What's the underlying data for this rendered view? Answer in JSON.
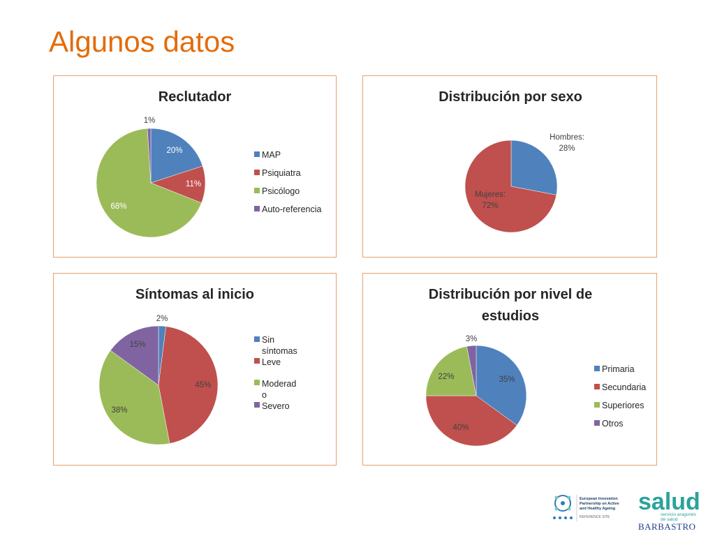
{
  "slide": {
    "title": "Algunos datos"
  },
  "colors": {
    "blue": "#4F81BD",
    "red": "#C0504D",
    "green": "#9BBB59",
    "purple": "#8064A2",
    "title_orange": "#E36C09",
    "border": "#E8A06A"
  },
  "chart_data": [
    {
      "type": "pie",
      "title": "Reclutador",
      "labels": [
        "MAP",
        "Psiquiatra",
        "Psicólogo",
        "Auto-referencia"
      ],
      "values": [
        20,
        11,
        68,
        1
      ],
      "value_labels": [
        "20%",
        "11%",
        "68%",
        "1%"
      ],
      "legend": "right"
    },
    {
      "type": "pie",
      "title": "Distribución por sexo",
      "labels": [
        "Hombres",
        "Mujeres"
      ],
      "values": [
        28,
        72
      ],
      "value_labels": [
        "Hombres: 28%",
        "Mujeres: 72%"
      ],
      "legend": "none"
    },
    {
      "type": "pie",
      "title": "Síntomas al inicio",
      "labels": [
        "Sin síntomas",
        "Leve",
        "Moderado",
        "Severo"
      ],
      "values": [
        2,
        45,
        38,
        15
      ],
      "value_labels": [
        "2%",
        "45%",
        "38%",
        "15%"
      ],
      "legend": "right"
    },
    {
      "type": "pie",
      "title": "Distribución por nivel de estudios",
      "labels": [
        "Primaria",
        "Secundaria",
        "Superiores",
        "Otros"
      ],
      "values": [
        35,
        40,
        22,
        3
      ],
      "value_labels": [
        "35%",
        "40%",
        "22%",
        "3%"
      ],
      "legend": "right"
    }
  ],
  "footer": {
    "eip_lines": [
      "European Innovation",
      "Partnership on Active",
      "and Healthy Ageing"
    ],
    "eip_sub": "REFERENCE SITE",
    "salud_word": "salud",
    "salud_sub1": "servicio aragonés",
    "salud_sub2": "de salud",
    "salud_place": "BARBASTRO"
  }
}
